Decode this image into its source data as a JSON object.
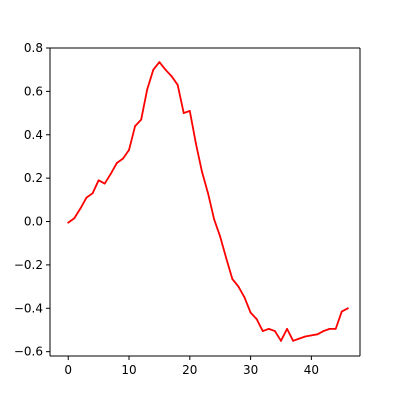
{
  "chart_data": {
    "type": "line",
    "title": "",
    "xlabel": "",
    "ylabel": "",
    "xlim": [
      -3,
      48
    ],
    "ylim": [
      -0.62,
      0.8
    ],
    "grid": false,
    "legend": "none",
    "x_ticks": [
      0,
      10,
      20,
      30,
      40
    ],
    "x_tick_labels": [
      "0",
      "10",
      "20",
      "30",
      "40"
    ],
    "y_ticks": [
      -0.6,
      -0.4,
      -0.2,
      0.0,
      0.2,
      0.4,
      0.6,
      0.8
    ],
    "y_tick_labels": [
      "−0.6",
      "−0.4",
      "−0.2",
      "0.0",
      "0.2",
      "0.4",
      "0.6",
      "0.8"
    ],
    "series": [
      {
        "color": "#ff0000",
        "x": [
          0,
          1,
          2,
          3,
          4,
          5,
          6,
          7,
          8,
          9,
          10,
          11,
          12,
          13,
          14,
          15,
          16,
          17,
          18,
          19,
          20,
          21,
          22,
          23,
          24,
          25,
          26,
          27,
          28,
          29,
          30,
          31,
          32,
          33,
          34,
          35,
          36,
          37,
          38,
          39,
          40,
          41,
          42,
          43,
          44,
          45,
          46
        ],
        "values": [
          -0.005,
          0.015,
          0.06,
          0.11,
          0.13,
          0.19,
          0.175,
          0.22,
          0.27,
          0.29,
          0.33,
          0.44,
          0.47,
          0.61,
          0.7,
          0.735,
          0.7,
          0.67,
          0.63,
          0.5,
          0.51,
          0.36,
          0.23,
          0.13,
          0.01,
          -0.07,
          -0.17,
          -0.265,
          -0.3,
          -0.35,
          -0.42,
          -0.45,
          -0.505,
          -0.495,
          -0.505,
          -0.55,
          -0.495,
          -0.55,
          -0.54,
          -0.53,
          -0.525,
          -0.52,
          -0.505,
          -0.495,
          -0.495,
          -0.415,
          -0.4
        ]
      }
    ]
  }
}
